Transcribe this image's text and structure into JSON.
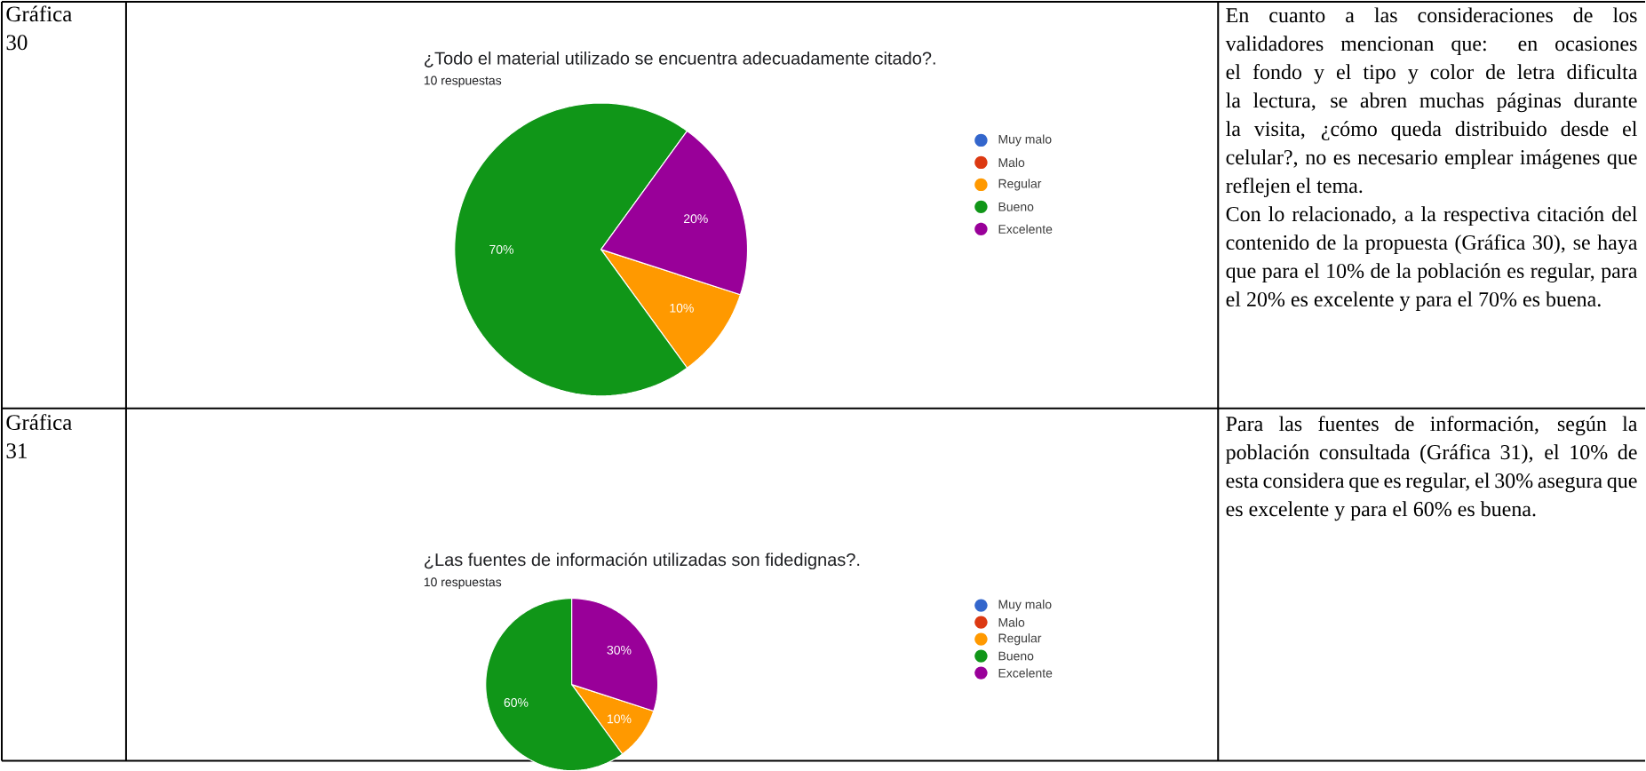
{
  "chart_data": [
    {
      "type": "pie",
      "title": "¿Todo el material utilizado se encuentra adecuadamente citado?.",
      "subtitle": "10 respuestas",
      "categories": [
        "Muy malo",
        "Malo",
        "Regular",
        "Bueno",
        "Excelente"
      ],
      "values": [
        0,
        0,
        10,
        70,
        20
      ],
      "value_labels": [
        null,
        null,
        "10%",
        "70%",
        "20%"
      ],
      "colors": [
        "#3366cc",
        "#dc3912",
        "#ff9900",
        "#109618",
        "#990099"
      ],
      "legend": "right",
      "annotations": [
        "Gráfica 30",
        "En cuanto a las consideraciones de los validadores mencionan que: en ocasiones el fondo y el tipo y color de letra dificulta la lectura, se abren muchas páginas durante la visita, ¿cómo queda distribuido desde el celular?, no es necesario emplear imágenes que reflejen el tema.",
        "Con lo relacionado, a la respectiva citación del contenido de la propuesta (Gráfica 30), se haya que para el 10% de la población es regular, para el 20% es excelente y para el 70% es buena."
      ]
    },
    {
      "type": "pie",
      "title": "¿Las fuentes de información utilizadas son fidedignas?.",
      "subtitle": "10 respuestas",
      "categories": [
        "Muy malo",
        "Malo",
        "Regular",
        "Bueno",
        "Excelente"
      ],
      "values": [
        0,
        0,
        10,
        60,
        30
      ],
      "value_labels": [
        null,
        null,
        "10%",
        "60%",
        "30%"
      ],
      "colors": [
        "#3366cc",
        "#dc3912",
        "#ff9900",
        "#109618",
        "#990099"
      ],
      "legend": "right",
      "annotations": [
        "Gráfica 31",
        "Para las fuentes de información, según la población consultada (Gráfica 31), el 10% de esta considera que es regular, el 30% asegura que es excelente y para el 60% es buena."
      ]
    }
  ]
}
